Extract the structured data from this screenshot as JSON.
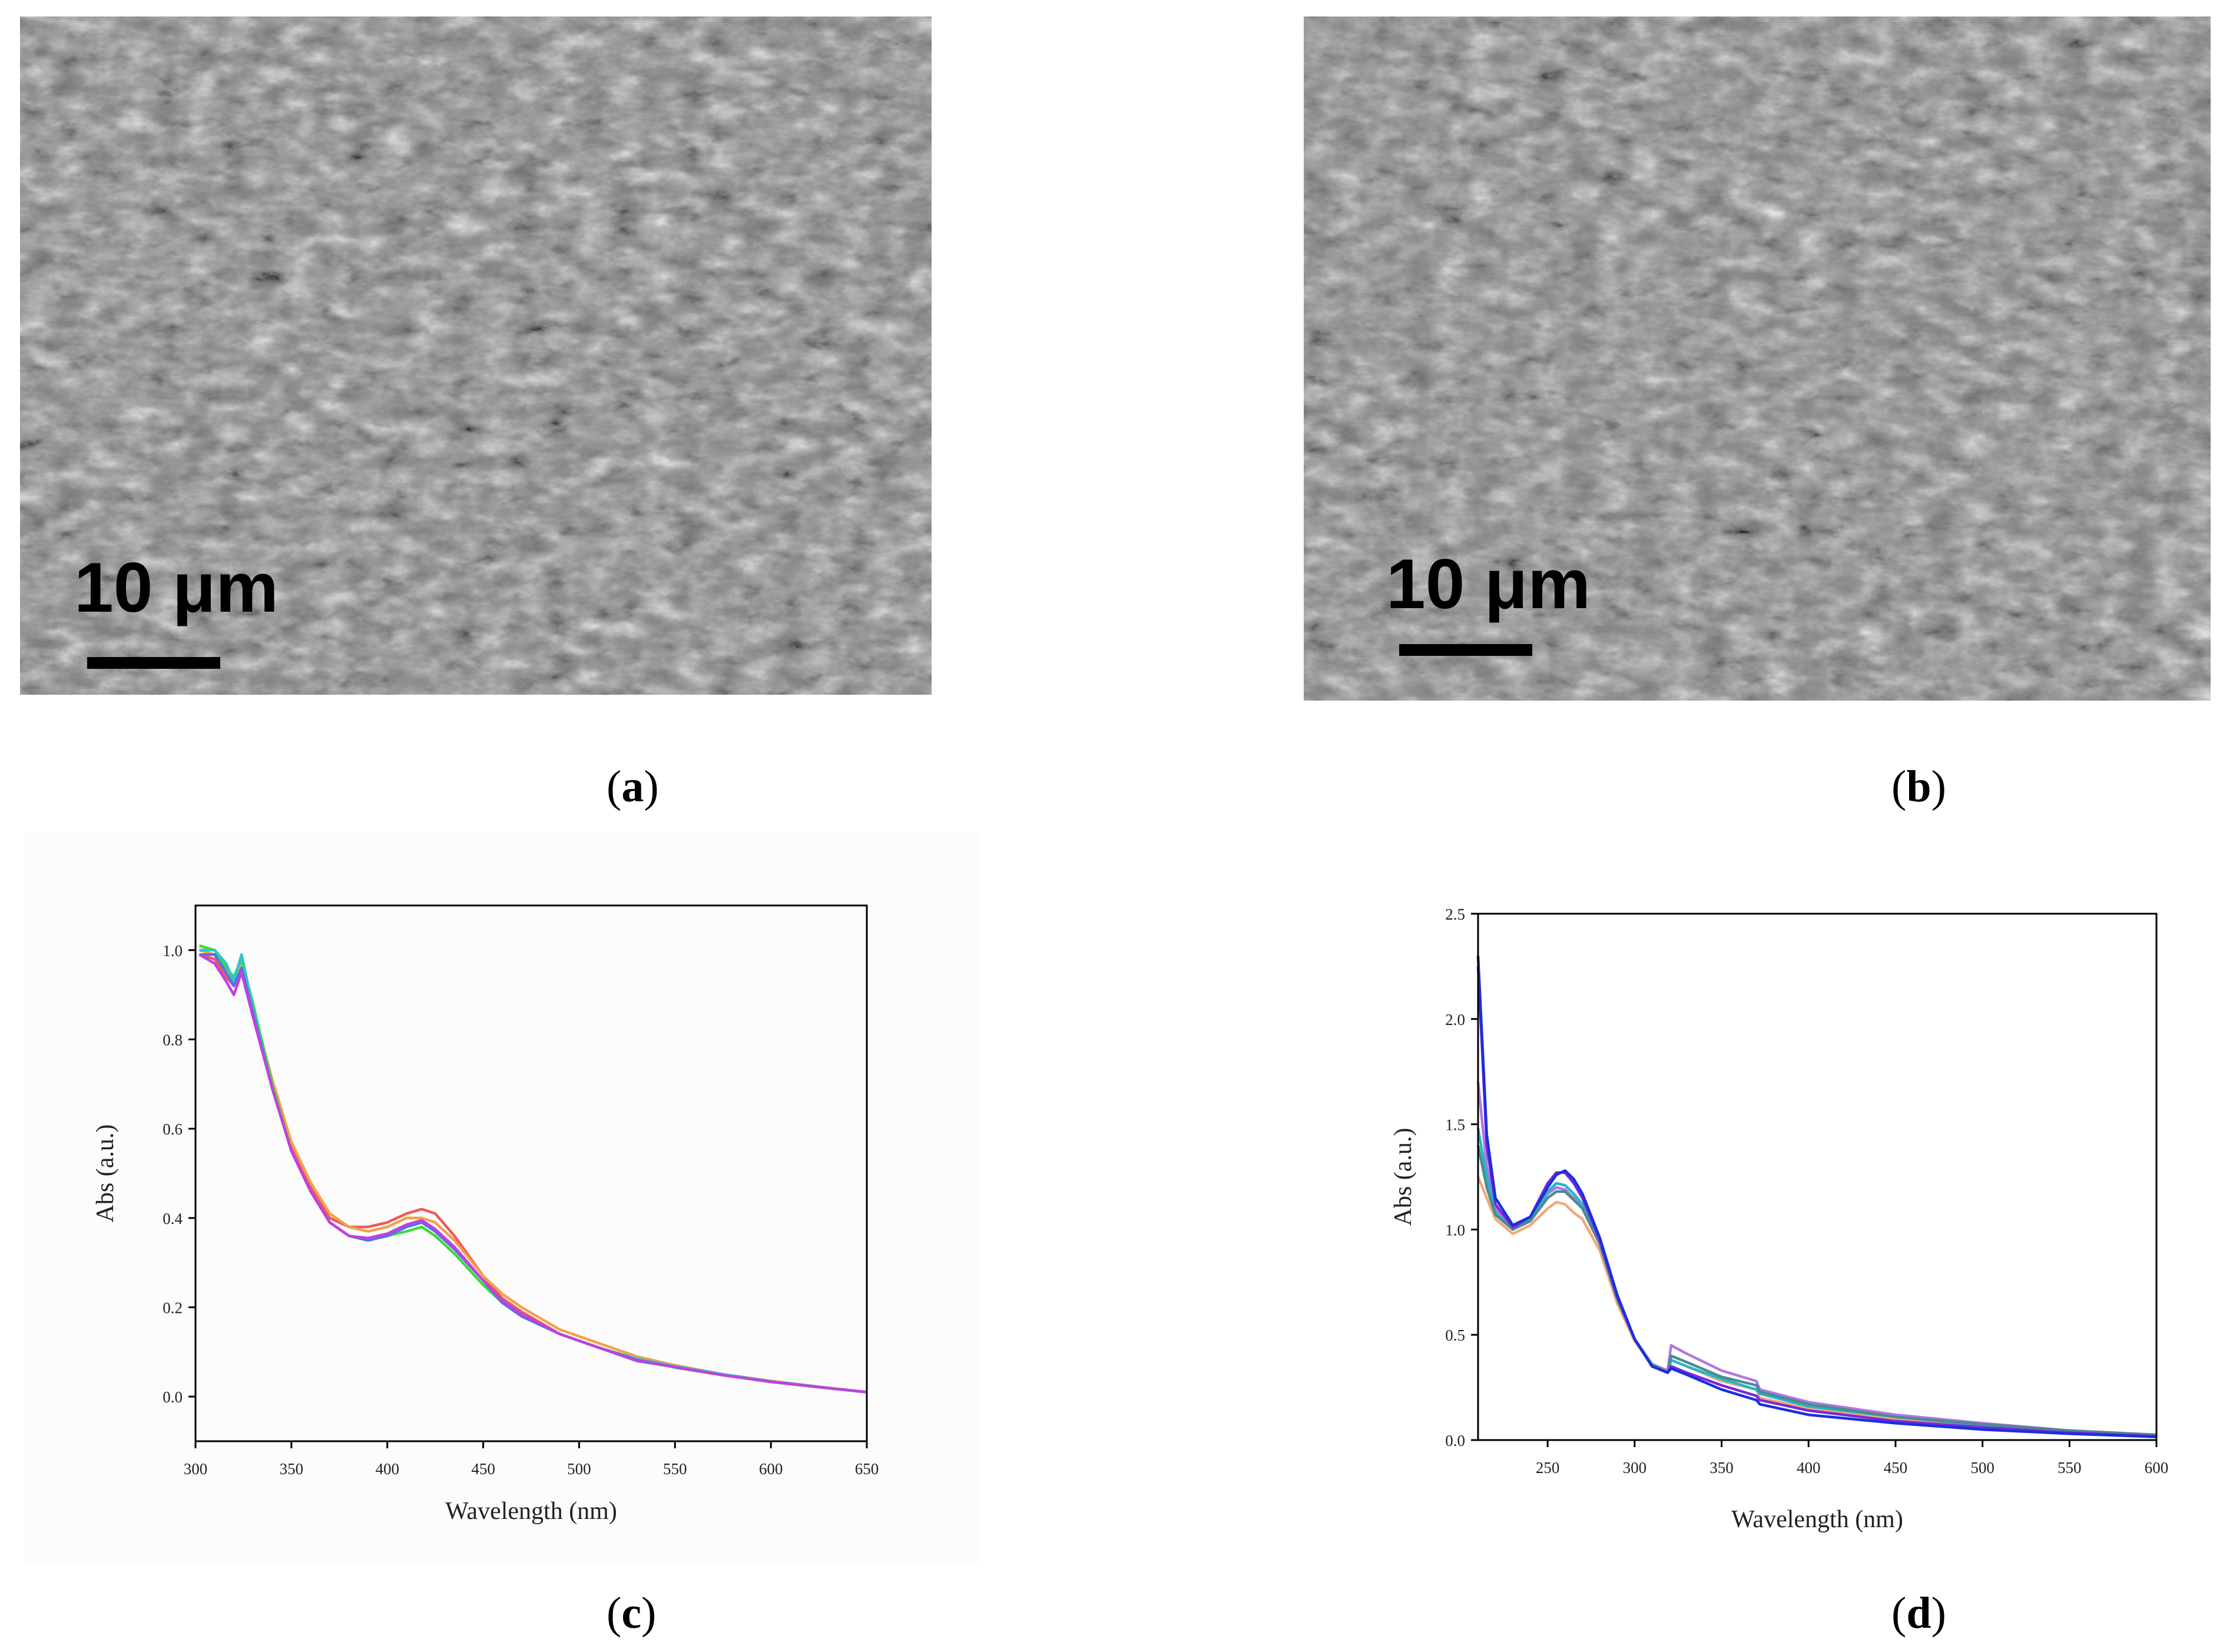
{
  "panels": {
    "a": {
      "caption_letter": "a",
      "scale_text": "10 μm"
    },
    "b": {
      "caption_letter": "b",
      "scale_text": "10 μm"
    },
    "c": {
      "caption_letter": "c"
    },
    "d": {
      "caption_letter": "d"
    }
  },
  "chart_data": [
    {
      "id": "c",
      "type": "line",
      "title": "",
      "xlabel": "Wavelength (nm)",
      "ylabel": "Abs (a.u.)",
      "xlim": [
        300,
        650
      ],
      "ylim": [
        -0.1,
        1.1
      ],
      "xticks": [
        300,
        350,
        400,
        450,
        500,
        550,
        600,
        650
      ],
      "yticks": [
        0.0,
        0.2,
        0.4,
        0.6,
        0.8,
        1.0
      ],
      "ytick_labels": [
        "0.0",
        "0.2",
        "0.4",
        "0.6",
        "0.8",
        "1.0"
      ],
      "grid": false,
      "series": [
        {
          "name": "red",
          "color": "#ee5a5a",
          "x": [
            302,
            310,
            316,
            320,
            324,
            330,
            340,
            350,
            360,
            370,
            380,
            390,
            400,
            410,
            418,
            425,
            435,
            450,
            460,
            470,
            490,
            510,
            530,
            550,
            575,
            600,
            625,
            650
          ],
          "y": [
            0.99,
            0.98,
            0.94,
            0.92,
            0.95,
            0.86,
            0.7,
            0.56,
            0.47,
            0.4,
            0.38,
            0.38,
            0.39,
            0.41,
            0.42,
            0.41,
            0.36,
            0.27,
            0.22,
            0.19,
            0.14,
            0.11,
            0.085,
            0.07,
            0.05,
            0.035,
            0.022,
            0.01
          ]
        },
        {
          "name": "orange",
          "color": "#f5a04a",
          "x": [
            302,
            310,
            316,
            320,
            324,
            330,
            340,
            350,
            360,
            370,
            380,
            390,
            400,
            410,
            418,
            425,
            435,
            450,
            460,
            470,
            490,
            510,
            530,
            550,
            575,
            600,
            625,
            650
          ],
          "y": [
            1.0,
            0.99,
            0.95,
            0.93,
            0.97,
            0.87,
            0.71,
            0.57,
            0.48,
            0.41,
            0.38,
            0.37,
            0.38,
            0.4,
            0.4,
            0.39,
            0.35,
            0.27,
            0.23,
            0.2,
            0.15,
            0.12,
            0.09,
            0.07,
            0.05,
            0.035,
            0.022,
            0.01
          ]
        },
        {
          "name": "green",
          "color": "#3adb3a",
          "x": [
            302,
            310,
            316,
            320,
            324,
            330,
            340,
            350,
            360,
            370,
            380,
            390,
            400,
            410,
            418,
            425,
            435,
            450,
            460,
            470,
            490,
            510,
            530,
            550,
            575,
            600,
            625,
            650
          ],
          "y": [
            1.01,
            1.0,
            0.96,
            0.94,
            0.98,
            0.88,
            0.7,
            0.55,
            0.46,
            0.39,
            0.36,
            0.35,
            0.36,
            0.37,
            0.38,
            0.36,
            0.32,
            0.25,
            0.21,
            0.18,
            0.14,
            0.11,
            0.085,
            0.065,
            0.048,
            0.033,
            0.021,
            0.01
          ]
        },
        {
          "name": "cyan",
          "color": "#2fc6c6",
          "x": [
            302,
            310,
            316,
            320,
            324,
            330,
            340,
            350,
            360,
            370,
            380,
            390,
            400,
            410,
            418,
            425,
            435,
            450,
            460,
            470,
            490,
            510,
            530,
            550,
            575,
            600,
            625,
            650
          ],
          "y": [
            1.0,
            1.0,
            0.97,
            0.93,
            0.99,
            0.87,
            0.69,
            0.55,
            0.46,
            0.39,
            0.36,
            0.35,
            0.36,
            0.38,
            0.39,
            0.37,
            0.33,
            0.26,
            0.21,
            0.18,
            0.14,
            0.11,
            0.085,
            0.068,
            0.05,
            0.034,
            0.022,
            0.01
          ]
        },
        {
          "name": "blue",
          "color": "#5a6ee8",
          "x": [
            302,
            310,
            316,
            320,
            324,
            330,
            340,
            350,
            360,
            370,
            380,
            390,
            400,
            410,
            418,
            425,
            435,
            450,
            460,
            470,
            490,
            510,
            530,
            550,
            575,
            600,
            625,
            650
          ],
          "y": [
            0.99,
            0.99,
            0.95,
            0.92,
            0.96,
            0.86,
            0.69,
            0.55,
            0.46,
            0.39,
            0.36,
            0.35,
            0.36,
            0.38,
            0.39,
            0.37,
            0.33,
            0.26,
            0.21,
            0.18,
            0.14,
            0.11,
            0.08,
            0.066,
            0.048,
            0.033,
            0.021,
            0.01
          ]
        },
        {
          "name": "magenta",
          "color": "#c43ee0",
          "x": [
            302,
            310,
            316,
            320,
            324,
            330,
            340,
            350,
            360,
            370,
            380,
            390,
            400,
            410,
            418,
            425,
            435,
            450,
            460,
            470,
            490,
            510,
            530,
            550,
            575,
            600,
            625,
            650
          ],
          "y": [
            0.99,
            0.97,
            0.93,
            0.9,
            0.95,
            0.85,
            0.69,
            0.55,
            0.46,
            0.39,
            0.36,
            0.355,
            0.365,
            0.385,
            0.395,
            0.375,
            0.335,
            0.26,
            0.215,
            0.185,
            0.14,
            0.11,
            0.082,
            0.066,
            0.048,
            0.033,
            0.021,
            0.01
          ]
        }
      ]
    },
    {
      "id": "d",
      "type": "line",
      "title": "",
      "xlabel": "Wavelength (nm)",
      "ylabel": "Abs (a.u.)",
      "xlim": [
        210,
        600
      ],
      "ylim": [
        0.0,
        2.5
      ],
      "xticks": [
        250,
        300,
        350,
        400,
        450,
        500,
        550,
        600
      ],
      "yticks": [
        0.0,
        0.5,
        1.0,
        1.5,
        2.0,
        2.5
      ],
      "ytick_labels": [
        "0.0",
        "0.5",
        "1.0",
        "1.5",
        "2.0",
        "2.5"
      ],
      "grid": false,
      "series": [
        {
          "name": "orange",
          "color": "#f0a878",
          "x": [
            210,
            215,
            220,
            230,
            240,
            250,
            255,
            260,
            265,
            270,
            280,
            290,
            300,
            310,
            319,
            321,
            330,
            350,
            370,
            372,
            400,
            450,
            500,
            550,
            600
          ],
          "y": [
            1.25,
            1.15,
            1.05,
            0.98,
            1.02,
            1.1,
            1.13,
            1.12,
            1.08,
            1.05,
            0.9,
            0.65,
            0.47,
            0.36,
            0.33,
            0.38,
            0.35,
            0.28,
            0.24,
            0.2,
            0.15,
            0.1,
            0.07,
            0.04,
            0.02
          ]
        },
        {
          "name": "violet",
          "color": "#b077e0",
          "x": [
            210,
            215,
            220,
            230,
            240,
            250,
            255,
            260,
            265,
            270,
            280,
            290,
            300,
            310,
            319,
            321,
            330,
            350,
            370,
            372,
            400,
            450,
            500,
            550,
            600
          ],
          "y": [
            1.7,
            1.3,
            1.1,
            1.0,
            1.05,
            1.17,
            1.2,
            1.19,
            1.15,
            1.1,
            0.93,
            0.67,
            0.48,
            0.36,
            0.33,
            0.45,
            0.41,
            0.33,
            0.28,
            0.24,
            0.18,
            0.12,
            0.08,
            0.045,
            0.025
          ]
        },
        {
          "name": "cyan",
          "color": "#22b8c8",
          "x": [
            210,
            215,
            220,
            230,
            240,
            250,
            255,
            260,
            265,
            270,
            280,
            290,
            300,
            310,
            319,
            321,
            330,
            350,
            370,
            372,
            400,
            450,
            500,
            550,
            600
          ],
          "y": [
            1.48,
            1.25,
            1.08,
            1.0,
            1.05,
            1.18,
            1.22,
            1.21,
            1.17,
            1.12,
            0.94,
            0.68,
            0.48,
            0.36,
            0.32,
            0.38,
            0.35,
            0.29,
            0.24,
            0.22,
            0.16,
            0.11,
            0.07,
            0.04,
            0.02
          ]
        },
        {
          "name": "teal-gray",
          "color": "#4c8a90",
          "x": [
            210,
            215,
            220,
            230,
            240,
            250,
            255,
            260,
            265,
            270,
            280,
            290,
            300,
            310,
            319,
            321,
            330,
            350,
            370,
            372,
            400,
            450,
            500,
            550,
            600
          ],
          "y": [
            1.4,
            1.2,
            1.07,
            1.0,
            1.04,
            1.15,
            1.18,
            1.18,
            1.14,
            1.1,
            0.93,
            0.67,
            0.48,
            0.36,
            0.32,
            0.4,
            0.37,
            0.3,
            0.26,
            0.23,
            0.17,
            0.11,
            0.075,
            0.045,
            0.025
          ]
        },
        {
          "name": "purple",
          "color": "#7a28d8",
          "x": [
            210,
            215,
            220,
            230,
            240,
            250,
            255,
            260,
            265,
            270,
            280,
            290,
            300,
            310,
            319,
            321,
            330,
            350,
            370,
            372,
            400,
            450,
            500,
            550,
            600
          ],
          "y": [
            2.25,
            1.4,
            1.12,
            1.01,
            1.06,
            1.22,
            1.27,
            1.27,
            1.22,
            1.15,
            0.95,
            0.68,
            0.48,
            0.35,
            0.32,
            0.35,
            0.32,
            0.26,
            0.21,
            0.19,
            0.14,
            0.09,
            0.06,
            0.035,
            0.018
          ]
        },
        {
          "name": "blue",
          "color": "#1a2ee0",
          "x": [
            210,
            215,
            220,
            230,
            240,
            250,
            255,
            260,
            265,
            270,
            280,
            290,
            300,
            310,
            319,
            321,
            330,
            350,
            370,
            372,
            400,
            450,
            500,
            550,
            600
          ],
          "y": [
            2.3,
            1.45,
            1.15,
            1.02,
            1.06,
            1.2,
            1.26,
            1.28,
            1.24,
            1.17,
            0.96,
            0.69,
            0.48,
            0.35,
            0.32,
            0.34,
            0.31,
            0.24,
            0.19,
            0.17,
            0.12,
            0.08,
            0.05,
            0.03,
            0.015
          ]
        }
      ]
    }
  ]
}
